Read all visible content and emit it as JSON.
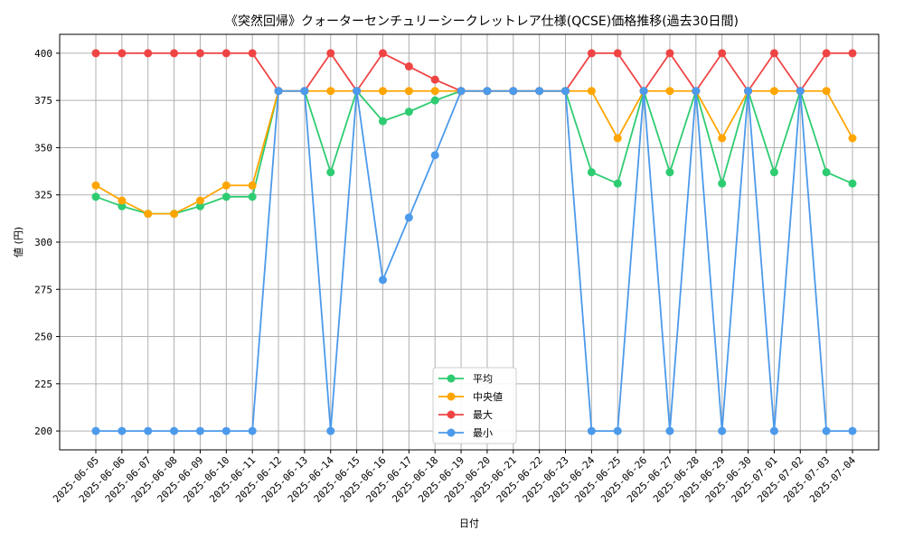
{
  "chart_data": {
    "type": "line",
    "title": "《突然回帰》クォーターセンチュリーシークレットレア仕様(QCSE)価格推移(過去30日間)",
    "xlabel": "日付",
    "ylabel": "値 (円)",
    "ylim": [
      190,
      410
    ],
    "yticks": [
      200,
      225,
      250,
      275,
      300,
      325,
      350,
      375,
      400
    ],
    "grid": true,
    "legend_position": "bottom-center",
    "categories": [
      "2025-06-05",
      "2025-06-06",
      "2025-06-07",
      "2025-06-08",
      "2025-06-09",
      "2025-06-10",
      "2025-06-11",
      "2025-06-12",
      "2025-06-13",
      "2025-06-14",
      "2025-06-15",
      "2025-06-16",
      "2025-06-17",
      "2025-06-18",
      "2025-06-19",
      "2025-06-20",
      "2025-06-21",
      "2025-06-22",
      "2025-06-23",
      "2025-06-24",
      "2025-06-25",
      "2025-06-26",
      "2025-06-27",
      "2025-06-28",
      "2025-06-29",
      "2025-06-30",
      "2025-07-01",
      "2025-07-02",
      "2025-07-03",
      "2025-07-04"
    ],
    "series": [
      {
        "name": "平均",
        "color": "#2ecc71",
        "values": [
          324,
          319,
          315,
          315,
          319,
          324,
          324,
          380,
          380,
          337,
          380,
          364,
          369,
          375,
          380,
          380,
          380,
          380,
          380,
          337,
          331,
          380,
          337,
          380,
          331,
          380,
          337,
          380,
          337,
          331
        ]
      },
      {
        "name": "中央値",
        "color": "#ffa500",
        "values": [
          330,
          322,
          315,
          315,
          322,
          330,
          330,
          380,
          380,
          380,
          380,
          380,
          380,
          380,
          380,
          380,
          380,
          380,
          380,
          380,
          355,
          380,
          380,
          380,
          355,
          380,
          380,
          380,
          380,
          355
        ]
      },
      {
        "name": "最大",
        "color": "#ef4444",
        "values": [
          400,
          400,
          400,
          400,
          400,
          400,
          400,
          380,
          380,
          400,
          380,
          400,
          393,
          386,
          380,
          380,
          380,
          380,
          380,
          400,
          400,
          380,
          400,
          380,
          400,
          380,
          400,
          380,
          400,
          400
        ]
      },
      {
        "name": "最小",
        "color": "#4c9aeb",
        "values": [
          200,
          200,
          200,
          200,
          200,
          200,
          200,
          380,
          380,
          200,
          380,
          280,
          313,
          346,
          380,
          380,
          380,
          380,
          380,
          200,
          200,
          380,
          200,
          380,
          200,
          380,
          200,
          380,
          200,
          200
        ]
      }
    ]
  }
}
